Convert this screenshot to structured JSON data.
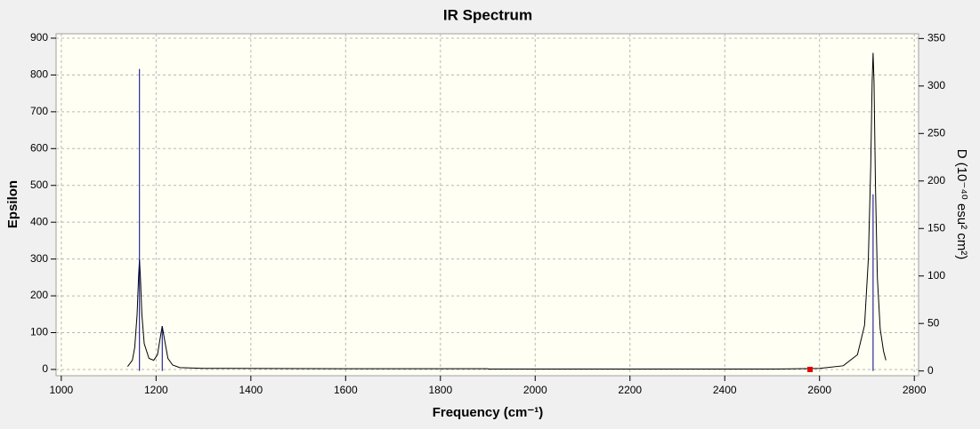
{
  "chart_data": {
    "type": "line",
    "title": "IR Spectrum",
    "x_label": "Frequency (cm⁻¹)",
    "y_label": "Epsilon",
    "y2_label": "D (10⁻⁴⁰ esu² cm²)",
    "xlim": [
      989,
      2809
    ],
    "ylim": [
      -17,
      912
    ],
    "y2lim": [
      -5,
      355
    ],
    "xticks": [
      1000,
      1200,
      1400,
      1600,
      1800,
      2000,
      2200,
      2400,
      2600,
      2800
    ],
    "yticks": [
      0,
      100,
      200,
      300,
      400,
      500,
      600,
      700,
      800,
      900
    ],
    "y2ticks": [
      0,
      50,
      100,
      150,
      200,
      250,
      300,
      350
    ],
    "grid": true,
    "series": [
      {
        "color": "#000000",
        "style": "line",
        "x": [
          1140,
          1150,
          1155,
          1160,
          1163,
          1165,
          1167,
          1170,
          1175,
          1185,
          1195,
          1203,
          1208,
          1213,
          1218,
          1225,
          1235,
          1250,
          1300,
          1600,
          1900,
          1901,
          2200,
          2500,
          2600,
          2650,
          2680,
          2695,
          2703,
          2708,
          2711,
          2713,
          2715,
          2718,
          2722,
          2728,
          2735,
          2740
        ],
        "values": [
          8,
          25,
          60,
          150,
          250,
          299,
          250,
          150,
          70,
          30,
          25,
          40,
          80,
          118,
          80,
          30,
          12,
          5,
          3,
          2,
          2,
          1,
          1,
          1,
          3,
          10,
          40,
          120,
          300,
          550,
          780,
          860,
          780,
          500,
          250,
          110,
          50,
          25
        ]
      },
      {
        "color": "#00008b",
        "style": "stick",
        "axis": "y2",
        "x": [
          1165,
          1213,
          2713
        ],
        "values": [
          318,
          46,
          186
        ]
      },
      {
        "color": "#e00000",
        "style": "marker",
        "x": [
          2580
        ],
        "values": [
          0
        ]
      }
    ]
  }
}
